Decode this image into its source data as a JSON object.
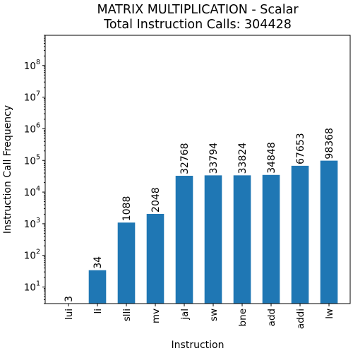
{
  "chart_data": {
    "type": "bar",
    "title": "MATRIX MULTIPLICATION - Scalar",
    "subtitle": "Total Instruction Calls: 304428",
    "xlabel": "Instruction",
    "ylabel": "Instruction Call Frequency",
    "yscale": "log",
    "ylim": [
      3,
      900000000
    ],
    "y_ticks": [
      {
        "value": 10,
        "base": "10",
        "exp": "1"
      },
      {
        "value": 100,
        "base": "10",
        "exp": "2"
      },
      {
        "value": 1000,
        "base": "10",
        "exp": "3"
      },
      {
        "value": 10000,
        "base": "10",
        "exp": "4"
      },
      {
        "value": 100000,
        "base": "10",
        "exp": "5"
      },
      {
        "value": 1000000,
        "base": "10",
        "exp": "6"
      },
      {
        "value": 10000000,
        "base": "10",
        "exp": "7"
      },
      {
        "value": 100000000,
        "base": "10",
        "exp": "8"
      }
    ],
    "categories": [
      "lui",
      "li",
      "slli",
      "mv",
      "jal",
      "sw",
      "bne",
      "add",
      "addi",
      "lw"
    ],
    "values": [
      3,
      34,
      1088,
      2048,
      32768,
      33794,
      33824,
      34848,
      67653,
      98368
    ],
    "bar_color": "#1f77b4",
    "grid": false,
    "legend": "none"
  }
}
